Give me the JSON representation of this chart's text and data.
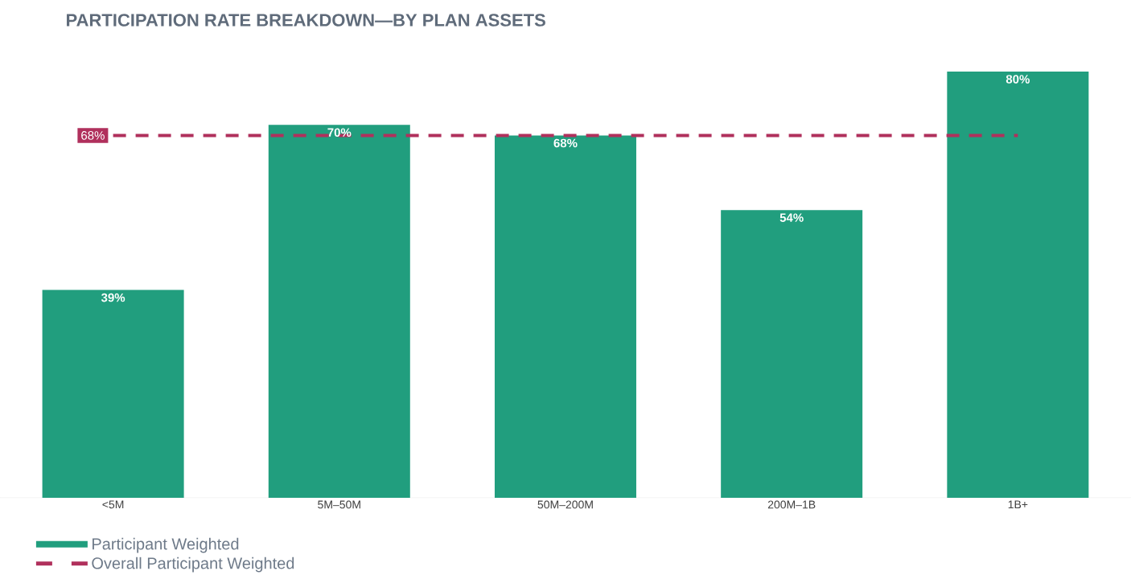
{
  "chart_data": {
    "type": "bar",
    "title": "PARTICIPATION RATE BREAKDOWN—BY PLAN ASSETS",
    "categories": [
      "<5M",
      "5M–50M",
      "50M–200M",
      "200M–1B",
      "1B+"
    ],
    "series": [
      {
        "name": "Participant Weighted",
        "color": "#219e7e",
        "values": [
          39,
          70,
          68,
          54,
          80
        ],
        "value_labels": [
          "39%",
          "70%",
          "68%",
          "54%",
          "80%"
        ]
      },
      {
        "name": "Overall Participant Weighted",
        "type": "line",
        "line_style": "dashed",
        "color": "#b0305c",
        "values": [
          68,
          68,
          68,
          68,
          68
        ],
        "value_labels": [
          "68%",
          null,
          null,
          null,
          null
        ]
      }
    ],
    "tick_labels": "x",
    "legend": "bottom left",
    "grid": false
  }
}
